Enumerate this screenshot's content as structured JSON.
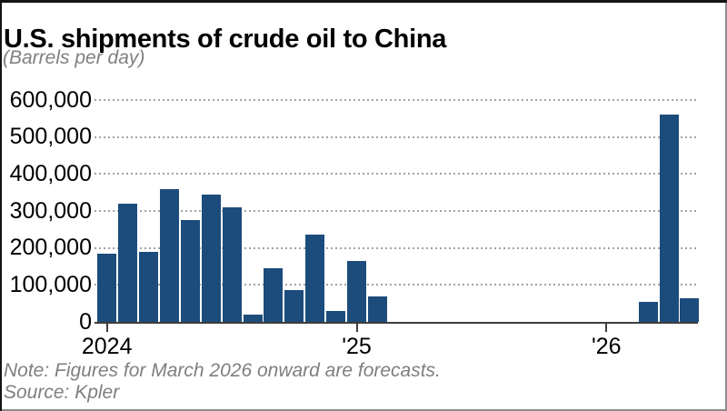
{
  "figure": {
    "title": "U.S. shipments of crude oil to China",
    "subtitle": "(Barrels per day)",
    "note": "Note: Figures for March 2026 onward are forecasts.",
    "source": "Source: Kpler"
  },
  "colors": {
    "bar": "#1c4c7c",
    "grid": "#a2a2a2",
    "axis": "#3d3d3d",
    "muted_text": "#7f7f7f"
  },
  "chart_data": {
    "type": "bar",
    "title": "U.S. shipments of crude oil to China",
    "ylabel": "Barrels per day",
    "categories": [
      "Jan 2024",
      "Feb 2024",
      "Mar 2024",
      "Apr 2024",
      "May 2024",
      "Jun 2024",
      "Jul 2024",
      "Aug 2024",
      "Sep 2024",
      "Oct 2024",
      "Nov 2024",
      "Dec 2024",
      "Jan 2025",
      "Feb 2025",
      "Mar 2025",
      "Apr 2025",
      "May 2025",
      "Jun 2025",
      "Jul 2025",
      "Aug 2025",
      "Sep 2025",
      "Oct 2025",
      "Nov 2025",
      "Dec 2025",
      "Jan 2026",
      "Feb 2026",
      "Mar 2026",
      "Apr 2026",
      "May 2026"
    ],
    "values": [
      185000,
      320000,
      190000,
      360000,
      275000,
      345000,
      310000,
      20000,
      145000,
      85000,
      235000,
      30000,
      165000,
      70000,
      0,
      0,
      0,
      0,
      0,
      0,
      0,
      0,
      0,
      0,
      0,
      0,
      55000,
      560000,
      65000
    ],
    "ylim": [
      0,
      600000
    ],
    "yticks": [
      {
        "value": 600000,
        "label": "600,000"
      },
      {
        "value": 500000,
        "label": "500,000"
      },
      {
        "value": 400000,
        "label": "400,000"
      },
      {
        "value": 300000,
        "label": "300,000"
      },
      {
        "value": 200000,
        "label": "200,000"
      },
      {
        "value": 100000,
        "label": "100,000"
      },
      {
        "value": 0,
        "label": "0"
      }
    ],
    "xticks": [
      {
        "month_index": 0,
        "label": "2024"
      },
      {
        "month_index": 12,
        "label": "'25"
      },
      {
        "month_index": 24,
        "label": "'26"
      }
    ],
    "grid": "horizontal-dotted",
    "legend": "none",
    "note": "Note: Figures for March 2026 onward are forecasts.",
    "source": "Source: Kpler"
  }
}
